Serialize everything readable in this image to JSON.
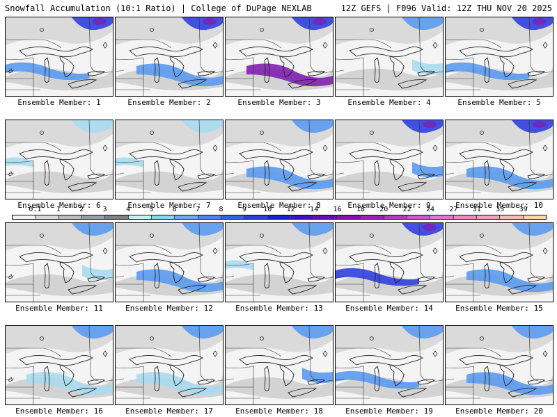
{
  "header": {
    "left": "Snowfall Accumulation (10:1 Ratio) | College of DuPage NEXLAB",
    "right": "12Z GEFS | F096 Valid: 12Z THU NOV 20 2025"
  },
  "members": [
    {
      "label": "Ensemble Member: 1",
      "snow_bands": [
        {
          "region": "north",
          "intensity": 4
        },
        {
          "region": "southwest",
          "intensity": 3
        }
      ]
    },
    {
      "label": "Ensemble Member: 2",
      "snow_bands": [
        {
          "region": "north",
          "intensity": 4
        },
        {
          "region": "south",
          "intensity": 3
        }
      ]
    },
    {
      "label": "Ensemble Member: 3",
      "snow_bands": [
        {
          "region": "north",
          "intensity": 4
        },
        {
          "region": "south",
          "intensity": 5
        }
      ]
    },
    {
      "label": "Ensemble Member: 4",
      "snow_bands": [
        {
          "region": "north",
          "intensity": 3
        },
        {
          "region": "east",
          "intensity": 2
        }
      ]
    },
    {
      "label": "Ensemble Member: 5",
      "snow_bands": [
        {
          "region": "north",
          "intensity": 4
        },
        {
          "region": "southwest",
          "intensity": 3
        }
      ]
    },
    {
      "label": "Ensemble Member: 6",
      "snow_bands": [
        {
          "region": "north",
          "intensity": 2
        },
        {
          "region": "west",
          "intensity": 2
        }
      ]
    },
    {
      "label": "Ensemble Member: 7",
      "snow_bands": [
        {
          "region": "north",
          "intensity": 2
        },
        {
          "region": "west",
          "intensity": 2
        }
      ]
    },
    {
      "label": "Ensemble Member: 8",
      "snow_bands": [
        {
          "region": "north",
          "intensity": 3
        },
        {
          "region": "south",
          "intensity": 3
        }
      ]
    },
    {
      "label": "Ensemble Member: 9",
      "snow_bands": [
        {
          "region": "north",
          "intensity": 4
        },
        {
          "region": "east",
          "intensity": 3
        }
      ]
    },
    {
      "label": "Ensemble Member: 10",
      "snow_bands": [
        {
          "region": "north",
          "intensity": 4
        },
        {
          "region": "south",
          "intensity": 3
        }
      ]
    },
    {
      "label": "Ensemble Member: 11",
      "snow_bands": [
        {
          "region": "north",
          "intensity": 3
        },
        {
          "region": "east",
          "intensity": 2
        }
      ]
    },
    {
      "label": "Ensemble Member: 12",
      "snow_bands": [
        {
          "region": "north",
          "intensity": 3
        },
        {
          "region": "south",
          "intensity": 3
        }
      ]
    },
    {
      "label": "Ensemble Member: 13",
      "snow_bands": [
        {
          "region": "north",
          "intensity": 3
        },
        {
          "region": "west",
          "intensity": 2
        }
      ]
    },
    {
      "label": "Ensemble Member: 14",
      "snow_bands": [
        {
          "region": "north",
          "intensity": 4
        },
        {
          "region": "southwest",
          "intensity": 4
        }
      ]
    },
    {
      "label": "Ensemble Member: 15",
      "snow_bands": [
        {
          "region": "north",
          "intensity": 3
        },
        {
          "region": "south",
          "intensity": 3
        }
      ]
    },
    {
      "label": "Ensemble Member: 16",
      "snow_bands": [
        {
          "region": "north",
          "intensity": 3
        },
        {
          "region": "south",
          "intensity": 2
        }
      ]
    },
    {
      "label": "Ensemble Member: 17",
      "snow_bands": [
        {
          "region": "north",
          "intensity": 3
        },
        {
          "region": "south",
          "intensity": 2
        }
      ]
    },
    {
      "label": "Ensemble Member: 18",
      "snow_bands": [
        {
          "region": "north",
          "intensity": 3
        },
        {
          "region": "east",
          "intensity": 3
        }
      ]
    },
    {
      "label": "Ensemble Member: 19",
      "snow_bands": [
        {
          "region": "north",
          "intensity": 3
        },
        {
          "region": "southwest",
          "intensity": 3
        }
      ]
    },
    {
      "label": "Ensemble Member: 20",
      "snow_bands": [
        {
          "region": "north",
          "intensity": 3
        },
        {
          "region": "south",
          "intensity": 3
        }
      ]
    }
  ],
  "colorbar": {
    "ticks": [
      "0.1",
      "1",
      "2",
      "3",
      "4",
      "5",
      "6",
      "7",
      "8",
      "9",
      "10",
      "12",
      "14",
      "16",
      "18",
      "20",
      "22",
      "24",
      "27",
      "31",
      "35",
      "39"
    ],
    "colors": [
      "#f2f2f2",
      "#d9d9d9",
      "#bdbdbd",
      "#9e9e9e",
      "#808080",
      "#c9f4f4",
      "#8fd4ee",
      "#6fa8f0",
      "#4d82e8",
      "#3a5ee0",
      "#2a3fd8",
      "#1b1fd0",
      "#3a14c0",
      "#5a10b4",
      "#7a14b0",
      "#9424b4",
      "#b03cc0",
      "#c85ccc",
      "#d87ad0",
      "#e290c4",
      "#e8a6b6",
      "#eec0a8",
      "#f4d8b0"
    ]
  }
}
